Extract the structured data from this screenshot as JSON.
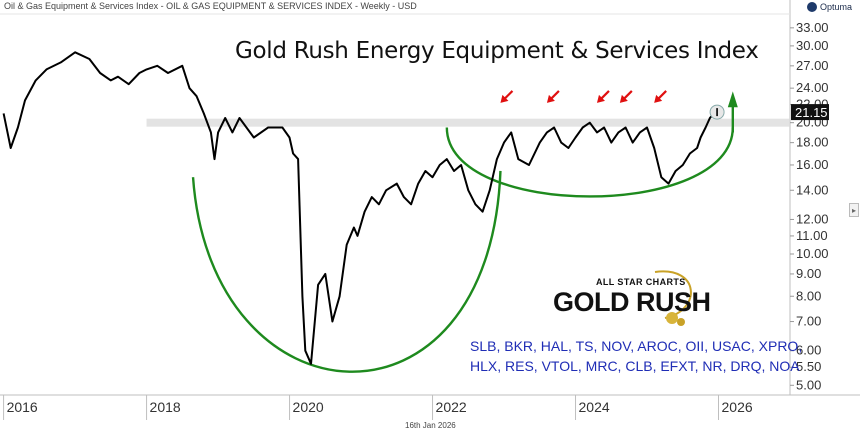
{
  "header": {
    "chart_label": "Oil & Gas Equipment & Services Index - OIL & GAS EQUIPMENT & SERVICES INDEX - Weekly - USD",
    "brand": "Optuma"
  },
  "footer": {
    "date": "16th Jan 2026"
  },
  "logo": {
    "line1": "ALL STAR CHARTS",
    "line2": "GOLD RUSH"
  },
  "tickers": [
    "SLB, BKR, HAL, TS, NOV, AROC, OII, USAC, XPRO,",
    "HLX, RES, VTOL, MRC, CLB, EFXT, NR, DRQ, NOA"
  ],
  "colors": {
    "price_line": "#000000",
    "arc": "#1e8a1e",
    "arrow_red": "#e01010",
    "arrow_green": "#1e8a1e",
    "ticker_text": "#1f2db5",
    "resistance_band": "#d9d9d9",
    "price_tag_bg": "#111111"
  },
  "chart_data": {
    "type": "line",
    "title": "Gold Rush Energy Equipment & Services Index",
    "scale": "log",
    "x_axis": {
      "ticks": [
        "2016",
        "2018",
        "2020",
        "2022",
        "2024",
        "2026"
      ],
      "range": [
        2015.95,
        2027.0
      ]
    },
    "y_axis": {
      "ticks": [
        "33.00",
        "30.00",
        "27.00",
        "24.00",
        "22.00",
        "20.00",
        "18.00",
        "16.00",
        "14.00",
        "12.00",
        "11.00",
        "10.00",
        "9.00",
        "8.00",
        "7.00",
        "6.00",
        "5.50",
        "5.00"
      ],
      "range": [
        4.75,
        35.5
      ],
      "position": "right"
    },
    "last_value": "21.15",
    "resistance_level": 20.0,
    "series": [
      {
        "x": [
          2016.0,
          2016.1,
          2016.2,
          2016.3,
          2016.45,
          2016.6,
          2016.8,
          2017.0,
          2017.2,
          2017.35,
          2017.5,
          2017.6,
          2017.75,
          2017.9,
          2018.0,
          2018.15,
          2018.3,
          2018.5,
          2018.6,
          2018.7,
          2018.8,
          2018.9,
          2018.95,
          2019.0,
          2019.1,
          2019.2,
          2019.3,
          2019.5,
          2019.7,
          2019.9,
          2020.0,
          2020.05,
          2020.12,
          2020.18,
          2020.22,
          2020.3,
          2020.4,
          2020.5,
          2020.6,
          2020.7,
          2020.8,
          2020.9,
          2020.95,
          2021.05,
          2021.15,
          2021.25,
          2021.35,
          2021.5,
          2021.6,
          2021.7,
          2021.8,
          2021.9,
          2022.0,
          2022.1,
          2022.2,
          2022.3,
          2022.4,
          2022.5,
          2022.6,
          2022.7,
          2022.8,
          2022.9,
          2023.0,
          2023.1,
          2023.2,
          2023.35,
          2023.5,
          2023.6,
          2023.7,
          2023.8,
          2023.9,
          2024.0,
          2024.1,
          2024.2,
          2024.3,
          2024.4,
          2024.5,
          2024.6,
          2024.7,
          2024.8,
          2024.9,
          2025.0,
          2025.1,
          2025.2,
          2025.3,
          2025.4,
          2025.5,
          2025.6,
          2025.7,
          2025.75,
          2025.82,
          2025.88,
          2025.95
        ],
        "values": [
          21.0,
          17.5,
          19.5,
          22.5,
          25.0,
          26.5,
          27.5,
          29.0,
          28.0,
          26.0,
          25.0,
          25.5,
          24.5,
          26.0,
          26.5,
          27.0,
          26.0,
          27.0,
          24.0,
          23.0,
          21.0,
          19.0,
          16.5,
          19.0,
          20.5,
          19.0,
          20.5,
          18.5,
          19.5,
          19.5,
          18.5,
          17.0,
          16.5,
          8.0,
          6.0,
          5.6,
          8.5,
          9.0,
          7.0,
          8.0,
          10.5,
          11.5,
          11.0,
          12.5,
          13.5,
          13.0,
          14.0,
          14.5,
          13.5,
          13.0,
          14.5,
          15.5,
          15.0,
          16.0,
          16.5,
          15.5,
          16.0,
          14.0,
          13.0,
          12.5,
          14.0,
          16.5,
          18.0,
          19.0,
          16.5,
          16.0,
          18.0,
          19.0,
          19.5,
          18.0,
          17.5,
          18.5,
          19.5,
          20.0,
          19.0,
          19.5,
          18.0,
          19.0,
          19.5,
          18.0,
          19.0,
          19.5,
          17.5,
          15.0,
          14.5,
          15.5,
          16.0,
          17.0,
          17.5,
          18.5,
          19.5,
          20.5,
          21.15
        ]
      }
    ],
    "annotations": {
      "arc_left": "cup",
      "arc_right": "rounding-bottom",
      "red_arrows_at": [
        2022.95,
        2023.6,
        2024.3,
        2024.62,
        2025.1
      ],
      "green_arrow_at": 2026.2,
      "circle_at": [
        2025.98,
        21.15
      ]
    }
  }
}
